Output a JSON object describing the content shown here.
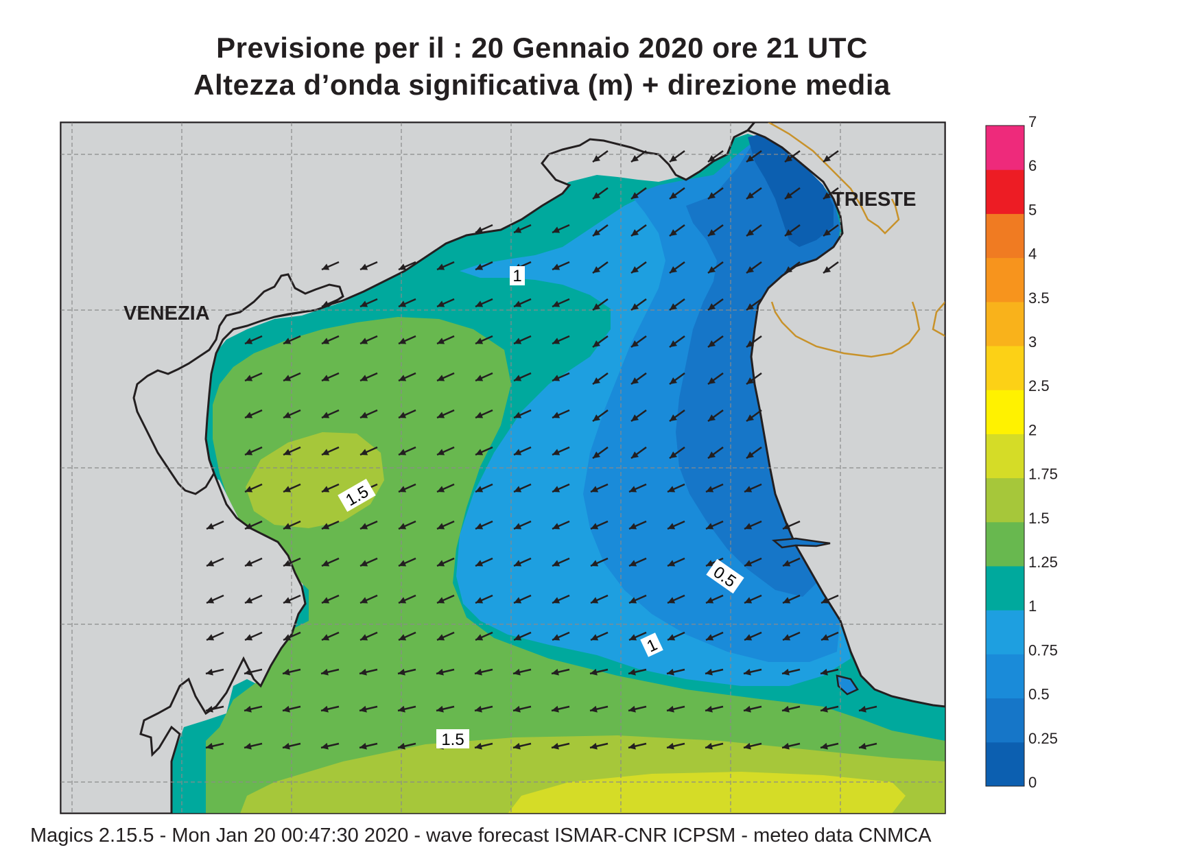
{
  "title": {
    "line1": "Previsione per il  :  20  Gennaio  2020   ore 21 UTC",
    "line2": "Altezza d’onda significativa (m) + direzione media"
  },
  "cities": [
    {
      "name": "VENEZIA"
    },
    {
      "name": "TRIESTE"
    }
  ],
  "contour_labels": [
    "1",
    "1.5",
    "0.5",
    "1",
    "1.5"
  ],
  "colorbar": {
    "levels": [
      "0",
      "0.25",
      "0.5",
      "0.75",
      "1",
      "1.25",
      "1.5",
      "1.75",
      "2",
      "2.5",
      "3",
      "3.5",
      "4",
      "5",
      "6",
      "7"
    ],
    "colors": [
      "#0c5fb0",
      "#1676c8",
      "#1a8bd9",
      "#1e9fe0",
      "#00a99d",
      "#68b84f",
      "#a6c73a",
      "#d5dc27",
      "#fff200",
      "#fcd116",
      "#f9b21b",
      "#f7941d",
      "#f07b22",
      "#ed1c24",
      "#ee2a7b"
    ]
  },
  "footer": "Magics 2.15.5 - Mon Jan 20 00:47:30 2020 - wave forecast  ISMAR-CNR  ICPSM - meteo data   CNMCA",
  "map_colors": {
    "land": "#d1d3d4",
    "coast": "#231f20",
    "border": "#c8922a",
    "grid": "#8a8a8a",
    "arrow": "#231f20"
  },
  "wave_direction": "towards south-west"
}
